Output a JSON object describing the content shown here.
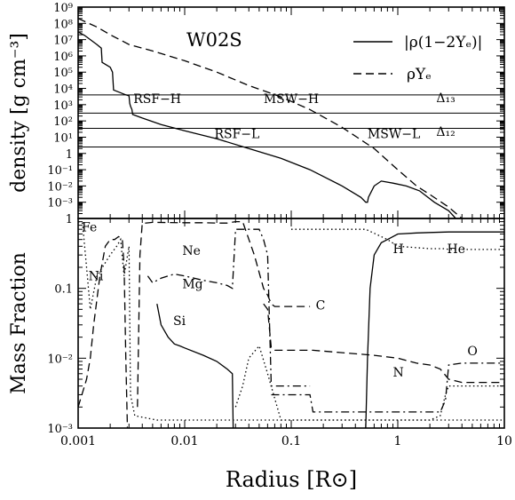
{
  "figure": {
    "model_label": "W02S",
    "xlabel": "Radius [R⊙]",
    "top_ylabel": "density [g cm⁻³]",
    "bottom_ylabel": "Mass Fraction"
  },
  "chart_data": [
    {
      "type": "line",
      "panel": "top",
      "xscale": "log",
      "yscale": "log",
      "xlim": [
        0.001,
        10
      ],
      "ylim": [
        0.0001,
        1000000000
      ],
      "ytick_labels": [
        "10⁻³",
        "10⁻²",
        "10⁻¹",
        "1",
        "10¹",
        "10²",
        "10³",
        "10⁴",
        "10⁵",
        "10⁶",
        "10⁷",
        "10⁸",
        "10⁹"
      ],
      "ytick_values": [
        0.001,
        0.01,
        0.1,
        1,
        10,
        100,
        1000,
        10000,
        100000,
        1000000,
        10000000,
        100000000,
        1000000000
      ],
      "legend": "top-right",
      "series": [
        {
          "name": "|ρ(1−2Yₑ)|",
          "style": "solid",
          "x": [
            0.001,
            0.00115,
            0.0013,
            0.0015,
            0.00165,
            0.00168,
            0.002,
            0.0021,
            0.00215,
            0.0028,
            0.003,
            0.00305,
            0.0031,
            0.0032,
            0.00325,
            0.004,
            0.006,
            0.01,
            0.02,
            0.04,
            0.08,
            0.15,
            0.3,
            0.45,
            0.5,
            0.52,
            0.53,
            0.6,
            0.7,
            0.9,
            1.2,
            1.6,
            2.2,
            3,
            3.5
          ],
          "y": [
            30000000,
            18000000,
            10000000,
            5000000,
            3000000,
            400000,
            200000,
            100000,
            8000,
            4000,
            3500,
            1200,
            800,
            500,
            250,
            150,
            60,
            25,
            8,
            2,
            0.5,
            0.1,
            0.01,
            0.002,
            0.001,
            0.001,
            0.002,
            0.01,
            0.02,
            0.015,
            0.01,
            0.005,
            0.001,
            0.0003,
            0.0001
          ]
        },
        {
          "name": "ρYₑ",
          "style": "dashed",
          "x": [
            0.001,
            0.0015,
            0.002,
            0.003,
            0.005,
            0.01,
            0.02,
            0.04,
            0.08,
            0.15,
            0.3,
            0.6,
            1,
            1.5,
            2,
            3,
            4
          ],
          "y": [
            200000000,
            60000000,
            20000000,
            5000000,
            2000000,
            500000,
            100000,
            15000,
            3000,
            500,
            40,
            2,
            0.1,
            0.01,
            0.003,
            0.0005,
            0.0001
          ]
        }
      ],
      "hlines": [
        {
          "y": 4000,
          "label": ""
        },
        {
          "y": 300,
          "label": ""
        },
        {
          "y": 35,
          "label": ""
        },
        {
          "y": 2.5,
          "label": ""
        }
      ],
      "annotations": [
        {
          "text": "RSF−H",
          "x": 0.0033,
          "y": 1300
        },
        {
          "text": "MSW−H",
          "x": 0.055,
          "y": 1300
        },
        {
          "text": "RSF−L",
          "x": 0.019,
          "y": 9
        },
        {
          "text": "MSW−L",
          "x": 0.52,
          "y": 9
        },
        {
          "text": "Δ₁₃",
          "x": 2.3,
          "y": 1400
        },
        {
          "text": "Δ₁₂",
          "x": 2.3,
          "y": 12
        }
      ]
    },
    {
      "type": "line",
      "panel": "bottom",
      "xscale": "log",
      "yscale": "log",
      "xlim": [
        0.001,
        10
      ],
      "ylim": [
        0.001,
        1
      ],
      "xtick_labels": [
        "0.001",
        "0.01",
        "0.1",
        "1",
        "10"
      ],
      "xtick_values": [
        0.001,
        0.01,
        0.1,
        1,
        10
      ],
      "ytick_labels": [
        "10⁻³",
        "10⁻²",
        "0.1",
        "1"
      ],
      "ytick_values": [
        0.001,
        0.01,
        0.1,
        1
      ],
      "series": [
        {
          "name": "Fe",
          "style": "dotted",
          "x": [
            0.001,
            0.0011,
            0.00115,
            0.0012,
            0.0013,
            0.0015,
            0.002,
            0.0023,
            0.0025,
            0.0027,
            0.003,
            0.0031,
            0.0034,
            0.0055,
            0.01,
            0.02,
            0.03,
            0.06,
            0.08,
            0.3,
            1,
            3,
            10
          ],
          "y": [
            0.9,
            0.85,
            0.4,
            0.2,
            0.05,
            0.15,
            0.3,
            0.4,
            0.5,
            0.15,
            0.4,
            0.003,
            0.0015,
            0.0013,
            0.0013,
            0.0013,
            0.0013,
            0.0013,
            0.0013,
            0.0013,
            0.0013,
            0.0013,
            0.0013
          ]
        },
        {
          "name": "Ni",
          "style": "dashed",
          "x": [
            0.001,
            0.0012,
            0.0013,
            0.0014,
            0.0016,
            0.0018,
            0.002,
            0.0022,
            0.0024,
            0.0026,
            0.0027,
            0.0028,
            0.0029
          ],
          "y": [
            0.002,
            0.005,
            0.01,
            0.03,
            0.15,
            0.4,
            0.5,
            0.5,
            0.55,
            0.5,
            0.2,
            0.01,
            0.001
          ]
        },
        {
          "name": "Ne",
          "style": "dashed",
          "x": [
            0.0036,
            0.0038,
            0.004,
            0.005,
            0.01,
            0.015,
            0.02,
            0.025,
            0.03,
            0.035,
            0.045,
            0.055,
            0.06,
            0.065,
            0.07,
            0.15
          ],
          "y": [
            0.002,
            0.3,
            0.85,
            0.88,
            0.87,
            0.87,
            0.86,
            0.86,
            0.9,
            0.9,
            0.3,
            0.1,
            0.08,
            0.06,
            0.055,
            0.055
          ]
        },
        {
          "name": "Mg",
          "style": "dashdot",
          "x": [
            0.0045,
            0.005,
            0.006,
            0.008,
            0.01,
            0.015,
            0.02,
            0.025,
            0.028,
            0.03,
            0.04,
            0.05,
            0.055,
            0.06,
            0.065,
            0.15
          ],
          "y": [
            0.15,
            0.12,
            0.14,
            0.16,
            0.15,
            0.13,
            0.12,
            0.11,
            0.1,
            0.7,
            0.7,
            0.7,
            0.5,
            0.3,
            0.004,
            0.004
          ]
        },
        {
          "name": "Si",
          "style": "solid",
          "x": [
            0.0055,
            0.006,
            0.007,
            0.008,
            0.009,
            0.01,
            0.015,
            0.02,
            0.025,
            0.028,
            0.0285
          ],
          "y": [
            0.06,
            0.03,
            0.02,
            0.016,
            0.015,
            0.014,
            0.011,
            0.009,
            0.007,
            0.006,
            0.001
          ]
        },
        {
          "name": "C",
          "style": "dashed",
          "x": [
            0.055,
            0.06,
            0.065,
            0.07,
            0.1,
            0.15,
            0.16,
            0.3,
            0.6,
            1,
            1.5,
            2,
            2.5,
            3,
            4,
            10
          ],
          "y": [
            0.06,
            0.05,
            0.014,
            0.013,
            0.013,
            0.013,
            0.013,
            0.012,
            0.011,
            0.01,
            0.0085,
            0.008,
            0.007,
            0.005,
            0.0045,
            0.0045
          ]
        },
        {
          "name": "O",
          "style": "dashdot",
          "x": [
            0.065,
            0.1,
            0.15,
            0.16,
            0.3,
            0.6,
            1,
            1.5,
            2,
            2.5,
            2.8,
            3,
            4,
            10
          ],
          "y": [
            0.003,
            0.003,
            0.003,
            0.0017,
            0.0017,
            0.0017,
            0.0017,
            0.0017,
            0.0017,
            0.0017,
            0.0025,
            0.008,
            0.0085,
            0.0085
          ]
        },
        {
          "name": "N",
          "style": "dotted",
          "x": [
            0.03,
            0.035,
            0.04,
            0.05,
            0.06,
            0.08,
            0.15,
            0.3,
            0.8,
            1,
            1.5,
            2,
            2.5,
            2.8,
            3,
            10
          ],
          "y": [
            0.002,
            0.004,
            0.01,
            0.015,
            0.006,
            0.0013,
            0.0013,
            0.0013,
            0.0013,
            0.0013,
            0.0013,
            0.0013,
            0.0015,
            0.003,
            0.004,
            0.004
          ]
        },
        {
          "name": "H",
          "style": "solid",
          "x": [
            0.5,
            0.52,
            0.55,
            0.6,
            0.7,
            0.8,
            1,
            1.5,
            2,
            3,
            5,
            10
          ],
          "y": [
            0.001,
            0.01,
            0.1,
            0.3,
            0.45,
            0.5,
            0.6,
            0.62,
            0.63,
            0.64,
            0.64,
            0.64
          ]
        },
        {
          "name": "He",
          "style": "dotted",
          "x": [
            0.1,
            0.3,
            0.5,
            0.8,
            1,
            2,
            2.8,
            3,
            4,
            10
          ],
          "y": [
            0.7,
            0.7,
            0.7,
            0.5,
            0.4,
            0.37,
            0.37,
            0.36,
            0.36,
            0.36
          ]
        }
      ],
      "annotations": [
        {
          "text": "Fe",
          "x": 0.00108,
          "y": 0.65
        },
        {
          "text": "Ni",
          "x": 0.00125,
          "y": 0.13
        },
        {
          "text": "Ne",
          "x": 0.0095,
          "y": 0.3
        },
        {
          "text": "Mg",
          "x": 0.0095,
          "y": 0.1
        },
        {
          "text": "Si",
          "x": 0.0078,
          "y": 0.03
        },
        {
          "text": "C",
          "x": 0.17,
          "y": 0.05
        },
        {
          "text": "H",
          "x": 0.9,
          "y": 0.32
        },
        {
          "text": "He",
          "x": 2.9,
          "y": 0.32
        },
        {
          "text": "N",
          "x": 0.9,
          "y": 0.0055
        },
        {
          "text": "O",
          "x": 4.5,
          "y": 0.011
        }
      ]
    }
  ]
}
